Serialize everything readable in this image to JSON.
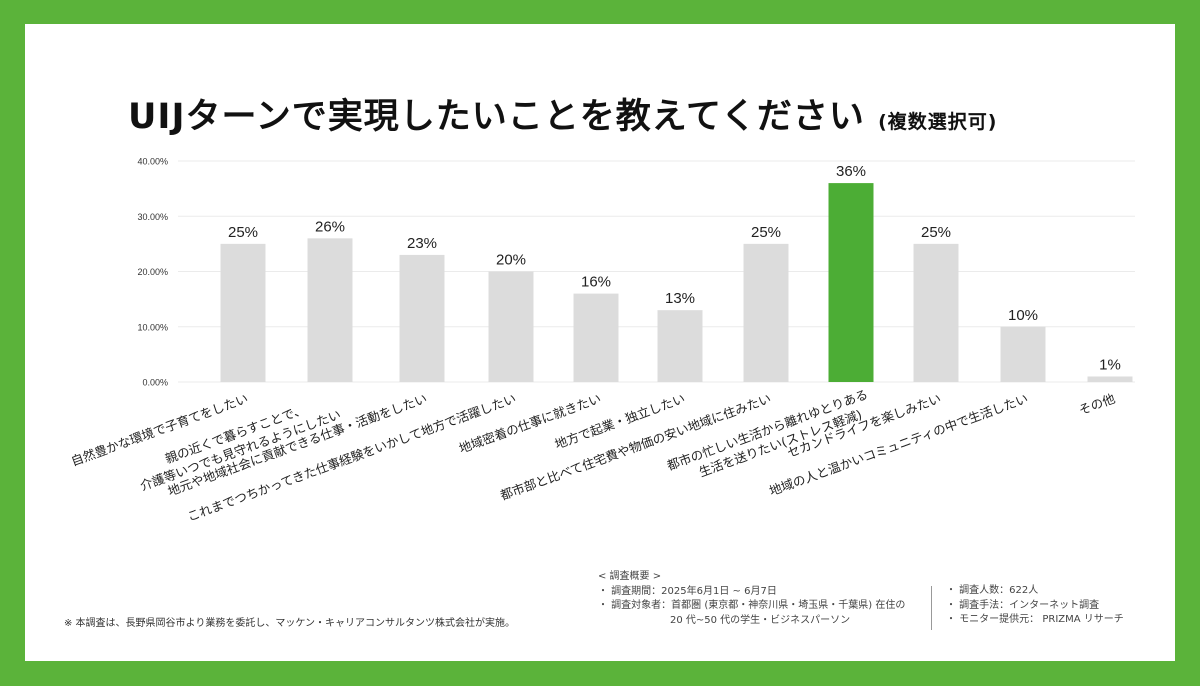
{
  "chart_data": {
    "type": "bar",
    "title": "UIJターンで実現したいことを教えてください",
    "subtitle": "(複数選択可)",
    "categories": [
      [
        "自然豊かな環境で子育てをしたい"
      ],
      [
        "親の近くで暮らすことで、",
        "介護等いつでも見守れるようにしたい"
      ],
      [
        "地元や地域社会に貢献できる仕事・活動をしたい"
      ],
      [
        "これまでつちかってきた仕事経験をいかして地方で活躍したい"
      ],
      [
        "地域密着の仕事に就きたい"
      ],
      [
        "地方で起業・独立したい"
      ],
      [
        "都市部と比べて住宅費や物価の安い地域に住みたい"
      ],
      [
        "都市の忙しい生活から離れゆとりある",
        "生活を送りたい(ストレス軽減)"
      ],
      [
        "セカンドライフを楽しみたい"
      ],
      [
        "地域の人と温かいコミュニティの中で生活したい"
      ],
      [
        "その他"
      ]
    ],
    "values": [
      25,
      26,
      23,
      20,
      16,
      13,
      25,
      36,
      25,
      10,
      1
    ],
    "data_labels": [
      "25%",
      "26%",
      "23%",
      "20%",
      "16%",
      "13%",
      "25%",
      "36%",
      "25%",
      "10%",
      "1%"
    ],
    "highlight_index": 7,
    "ylim": [
      0,
      40
    ],
    "yticks": [
      "0.00%",
      "10.00%",
      "20.00%",
      "30.00%",
      "40.00%"
    ],
    "grid": true,
    "colors": {
      "bar": "#dcdcdc",
      "highlight": "#4cad35",
      "grid": "#ebebeb"
    }
  },
  "footnote": "※ 本調査は、長野県岡谷市より業務を委託し、マッケン・キャリアコンサルタンツ株式会社が実施。",
  "summary": {
    "heading": "< 調査概要 >",
    "period": "・ 調査期間：2025年6月1日 ~ 6月7日",
    "target": "・ 調査対象者：首都圏 (東京都・神奈川県・埼玉県・千葉県) 在住の",
    "target2": "20 代~50 代の学生・ビジネスパーソン",
    "count": "・ 調査人数：622人",
    "method": "・ 調査手法：インターネット調査",
    "provider": "・ モニター提供元： PRIZMA リサーチ"
  }
}
